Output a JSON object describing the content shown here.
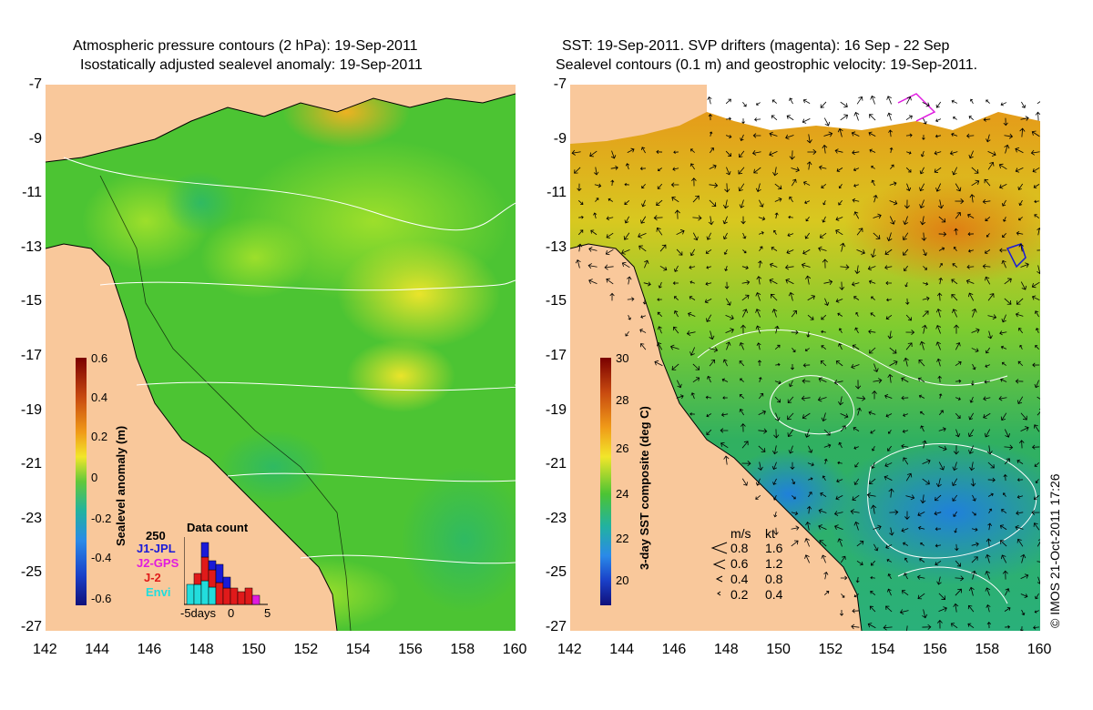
{
  "left_panel": {
    "title_line1": "Atmospheric pressure contours (2 hPa): 19-Sep-2011",
    "title_line2": "Isostatically adjusted sealevel anomaly: 19-Sep-2011",
    "colorbar": {
      "label": "Sealevel anomaly (m)",
      "ticks": [
        "0.6",
        "0.4",
        "0.2",
        "0",
        "-0.2",
        "-0.4",
        "-0.6"
      ]
    },
    "inset": {
      "title": "Data count",
      "ymax_label": "250",
      "legend": [
        {
          "name": "J1-JPL",
          "color": "#1a1ad8"
        },
        {
          "name": "J2-GPS",
          "color": "#e01ae0"
        },
        {
          "name": "J-2",
          "color": "#e01a1a"
        },
        {
          "name": "Envi",
          "color": "#22dddd"
        }
      ],
      "xlabel_left": "-5days",
      "xlabel_mid": "0",
      "xlabel_right": "5"
    }
  },
  "right_panel": {
    "title_line1": "SST: 19-Sep-2011. SVP drifters (magenta): 16 Sep - 22 Sep",
    "title_line2": "Sealevel contours (0.1 m) and geostrophic velocity: 19-Sep-2011.",
    "colorbar": {
      "label": "3-day SST composite (deg C)",
      "ticks": [
        "30",
        "28",
        "26",
        "24",
        "22",
        "20"
      ]
    },
    "velocity_legend": {
      "header_ms": "m/s",
      "header_kt": "kt",
      "rows": [
        {
          "ms": "0.8",
          "kt": "1.6"
        },
        {
          "ms": "0.6",
          "kt": "1.2"
        },
        {
          "ms": "0.4",
          "kt": "0.8"
        },
        {
          "ms": "0.2",
          "kt": "0.4"
        }
      ]
    }
  },
  "axes": {
    "y_ticks": [
      "-7",
      "-9",
      "-11",
      "-13",
      "-15",
      "-17",
      "-19",
      "-21",
      "-23",
      "-25",
      "-27"
    ],
    "x_ticks": [
      "142",
      "144",
      "146",
      "148",
      "150",
      "152",
      "154",
      "156",
      "158",
      "160"
    ]
  },
  "copyright": "© IMOS 21-Oct-2011 17:26",
  "colors": {
    "land": "#f9c89b",
    "ocean_mid": "#4cc433",
    "ocean_warm": "#ffc21e",
    "ocean_cool": "#22aaee"
  }
}
